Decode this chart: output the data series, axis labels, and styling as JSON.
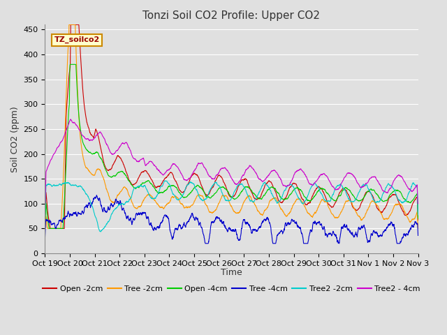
{
  "title": "Tonzi Soil CO2 Profile: Upper CO2",
  "ylabel": "Soil CO2 (ppm)",
  "xlabel": "Time",
  "watermark": "TZ_soilco2",
  "ylim": [
    0,
    460
  ],
  "xtick_labels": [
    "Oct 19",
    "Oct 20",
    "Oct 21",
    "Oct 22",
    "Oct 23",
    "Oct 24",
    "Oct 25",
    "Oct 26",
    "Oct 27",
    "Oct 28",
    "Oct 29",
    "Oct 30",
    "Oct 31",
    "Nov 1",
    "Nov 2",
    "Nov 3"
  ],
  "series_colors": {
    "Open -2cm": "#cc0000",
    "Tree -2cm": "#ff9900",
    "Open -4cm": "#00cc00",
    "Tree -4cm": "#0000cc",
    "Tree2 -2cm": "#00cccc",
    "Tree2 - 4cm": "#cc00cc"
  },
  "background_color": "#e0e0e0",
  "plot_bg_color": "#e0e0e0",
  "grid_color": "#ffffff",
  "title_fontsize": 11,
  "label_fontsize": 9,
  "tick_fontsize": 8,
  "legend_fontsize": 8,
  "n_points": 2160,
  "random_seed": 42
}
